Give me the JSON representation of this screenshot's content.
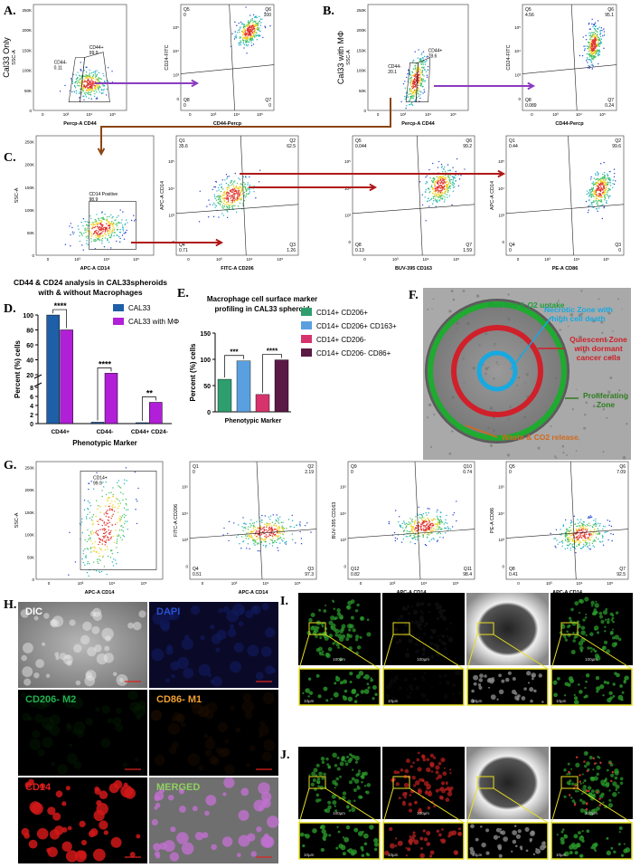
{
  "panel_labels": [
    "A.",
    "B.",
    "C.",
    "D.",
    "E.",
    "F.",
    "G.",
    "H.",
    "I.",
    "J."
  ],
  "ticks": {
    "linear": [
      "0",
      "50K",
      "100K",
      "150K",
      "200K",
      "250K"
    ],
    "log": [
      "0",
      "10³",
      "10⁴",
      "10⁵"
    ]
  },
  "flow_plots": [
    {
      "y_label": "SSC-A",
      "side_label": "Cal33 Only",
      "x_label": "Percp-A CD44",
      "gates": [
        {
          "name": "CD44-",
          "value": "0.11"
        },
        {
          "name": "CD44+",
          "value": "99.9"
        }
      ]
    },
    {
      "y_label": "CD24-FITC",
      "x_label": "CD44-Percp",
      "quadrants": [
        {
          "name": "Q5",
          "value": "0"
        },
        {
          "name": "Q6",
          "value": "100"
        },
        {
          "name": "Q8",
          "value": "0"
        },
        {
          "name": "Q7",
          "value": "0"
        }
      ]
    },
    {
      "y_label": "SSC-A",
      "side_label": "Cal33 with MΦ",
      "x_label": "Percp-A CD44",
      "gates": [
        {
          "name": "CD44-",
          "value": "20.1"
        },
        {
          "name": "CD44+",
          "value": "78.6"
        }
      ]
    },
    {
      "y_label": "CD24-FITC",
      "x_label": "CD44-Percp",
      "quadrants": [
        {
          "name": "Q5",
          "value": "4.56"
        },
        {
          "name": "Q6",
          "value": "95.1"
        },
        {
          "name": "Q8",
          "value": "0.089"
        },
        {
          "name": "Q7",
          "value": "0.24"
        }
      ]
    },
    {
      "y_label": "SSC-A",
      "x_label": "APC-A CD14",
      "gates": [
        {
          "name": "CD14 Positive",
          "value": "98.9"
        }
      ]
    },
    {
      "y_label": "APC-A CD14",
      "x_label": "FITC-A CD206",
      "quadrants": [
        {
          "name": "Q1",
          "value": "35.6"
        },
        {
          "name": "Q2",
          "value": "62.5"
        },
        {
          "name": "Q4",
          "value": "0.71"
        },
        {
          "name": "Q3",
          "value": "1.26"
        }
      ]
    },
    {
      "x_label": "BUV-395 CD163",
      "quadrants": [
        {
          "name": "Q5",
          "value": "0.044"
        },
        {
          "name": "Q6",
          "value": "99.2"
        },
        {
          "name": "Q8",
          "value": "0.13"
        },
        {
          "name": "Q7",
          "value": "1.59"
        }
      ]
    },
    {
      "y_label": "APC-A CD14",
      "x_label": "PE-A CD86",
      "quadrants": [
        {
          "name": "Q1",
          "value": "0.44"
        },
        {
          "name": "Q2",
          "value": "99.6"
        },
        {
          "name": "Q4",
          "value": "0"
        },
        {
          "name": "Q3",
          "value": "0"
        }
      ]
    },
    {
      "y_label": "SSC-A",
      "x_label": "APC-A CD14",
      "gates": [
        {
          "name": "CD14+",
          "value": "99.9"
        }
      ]
    },
    {
      "y_label": "FITC-A CD206",
      "x_label": "APC-A CD14",
      "quadrants": [
        {
          "name": "Q1",
          "value": "0"
        },
        {
          "name": "Q2",
          "value": "2.19"
        },
        {
          "name": "Q4",
          "value": "0.51"
        },
        {
          "name": "Q3",
          "value": "97.3"
        }
      ]
    },
    {
      "y_label": "BUV-395 CD163",
      "x_label": "APC-A CD14",
      "quadrants": [
        {
          "name": "Q9",
          "value": "0"
        },
        {
          "name": "Q10",
          "value": "0.74"
        },
        {
          "name": "Q12",
          "value": "0.82"
        },
        {
          "name": "Q11",
          "value": "98.4"
        }
      ]
    },
    {
      "y_label": "PE-A CD86",
      "x_label": "APC-A CD14",
      "quadrants": [
        {
          "name": "Q5",
          "value": "0"
        },
        {
          "name": "Q6",
          "value": "7.09"
        },
        {
          "name": "Q8",
          "value": "0.41"
        },
        {
          "name": "Q7",
          "value": "92.5"
        }
      ]
    }
  ],
  "chart_data": [
    {
      "type": "bar",
      "title": [
        "CD44 & CD24 analysis in CAL33spheroids",
        "with & without Macrophages"
      ],
      "y_label": "Percent (%) cells",
      "x_label": "Phenotypic Marker",
      "categories": [
        "CD44+",
        "CD44-",
        "CD44+ CD24-"
      ],
      "series": [
        {
          "name": "CAL33",
          "color": "#1f5fa8",
          "values": [
            99.9,
            0.3,
            0.2
          ]
        },
        {
          "name": "CAL33 with MΦ",
          "color": "#b21fd8",
          "values": [
            80,
            22,
            4.7
          ]
        }
      ],
      "ylim": [
        0,
        100
      ],
      "y_break": [
        8,
        20
      ],
      "yticks": [
        0,
        2,
        4,
        6,
        8,
        20,
        40,
        60,
        80,
        100
      ],
      "significance": [
        "****",
        "****",
        "**"
      ]
    },
    {
      "type": "bar",
      "title": [
        "Macrophage cell surface marker",
        "profiling in CAL33 spheroid"
      ],
      "y_label": "Percent (%) cells",
      "x_label": "Phenotypic Marker",
      "categories": [
        "CD14+ CD206+",
        "CD14+ CD206+ CD163+",
        "CD14+ CD206-",
        "CD14+ CD206- CD86+"
      ],
      "values": [
        62,
        97,
        33,
        99
      ],
      "colors": [
        "#2e9e6e",
        "#5aa0e0",
        "#d6336c",
        "#5a1a45"
      ],
      "ylim": [
        0,
        150
      ],
      "yticks": [
        0,
        50,
        100,
        150
      ],
      "significance": [
        "***",
        "****"
      ]
    }
  ],
  "diagram": {
    "labels": [
      {
        "lines": [
          "Nutrient & O2 uptake"
        ],
        "color": "#1f9e3a"
      },
      {
        "lines": [
          "Necrotic Zone with",
          "high cell death"
        ],
        "color": "#18a9e0"
      },
      {
        "lines": [
          "Quiescent Zone",
          "with dormant",
          "cancer cells"
        ],
        "color": "#d0202a"
      },
      {
        "lines": [
          "Proliferating",
          "Zone"
        ],
        "color": "#2e7d1e"
      },
      {
        "lines": [
          "Waste & CO2 release"
        ],
        "color": "#d2691e"
      }
    ]
  },
  "microscopy": {
    "channels": [
      "DIC",
      "DAPI",
      "CD206- M2",
      "CD86- M1",
      "CD14",
      "MERGED"
    ],
    "scale_labels": [
      "100µm",
      "10µm"
    ]
  }
}
